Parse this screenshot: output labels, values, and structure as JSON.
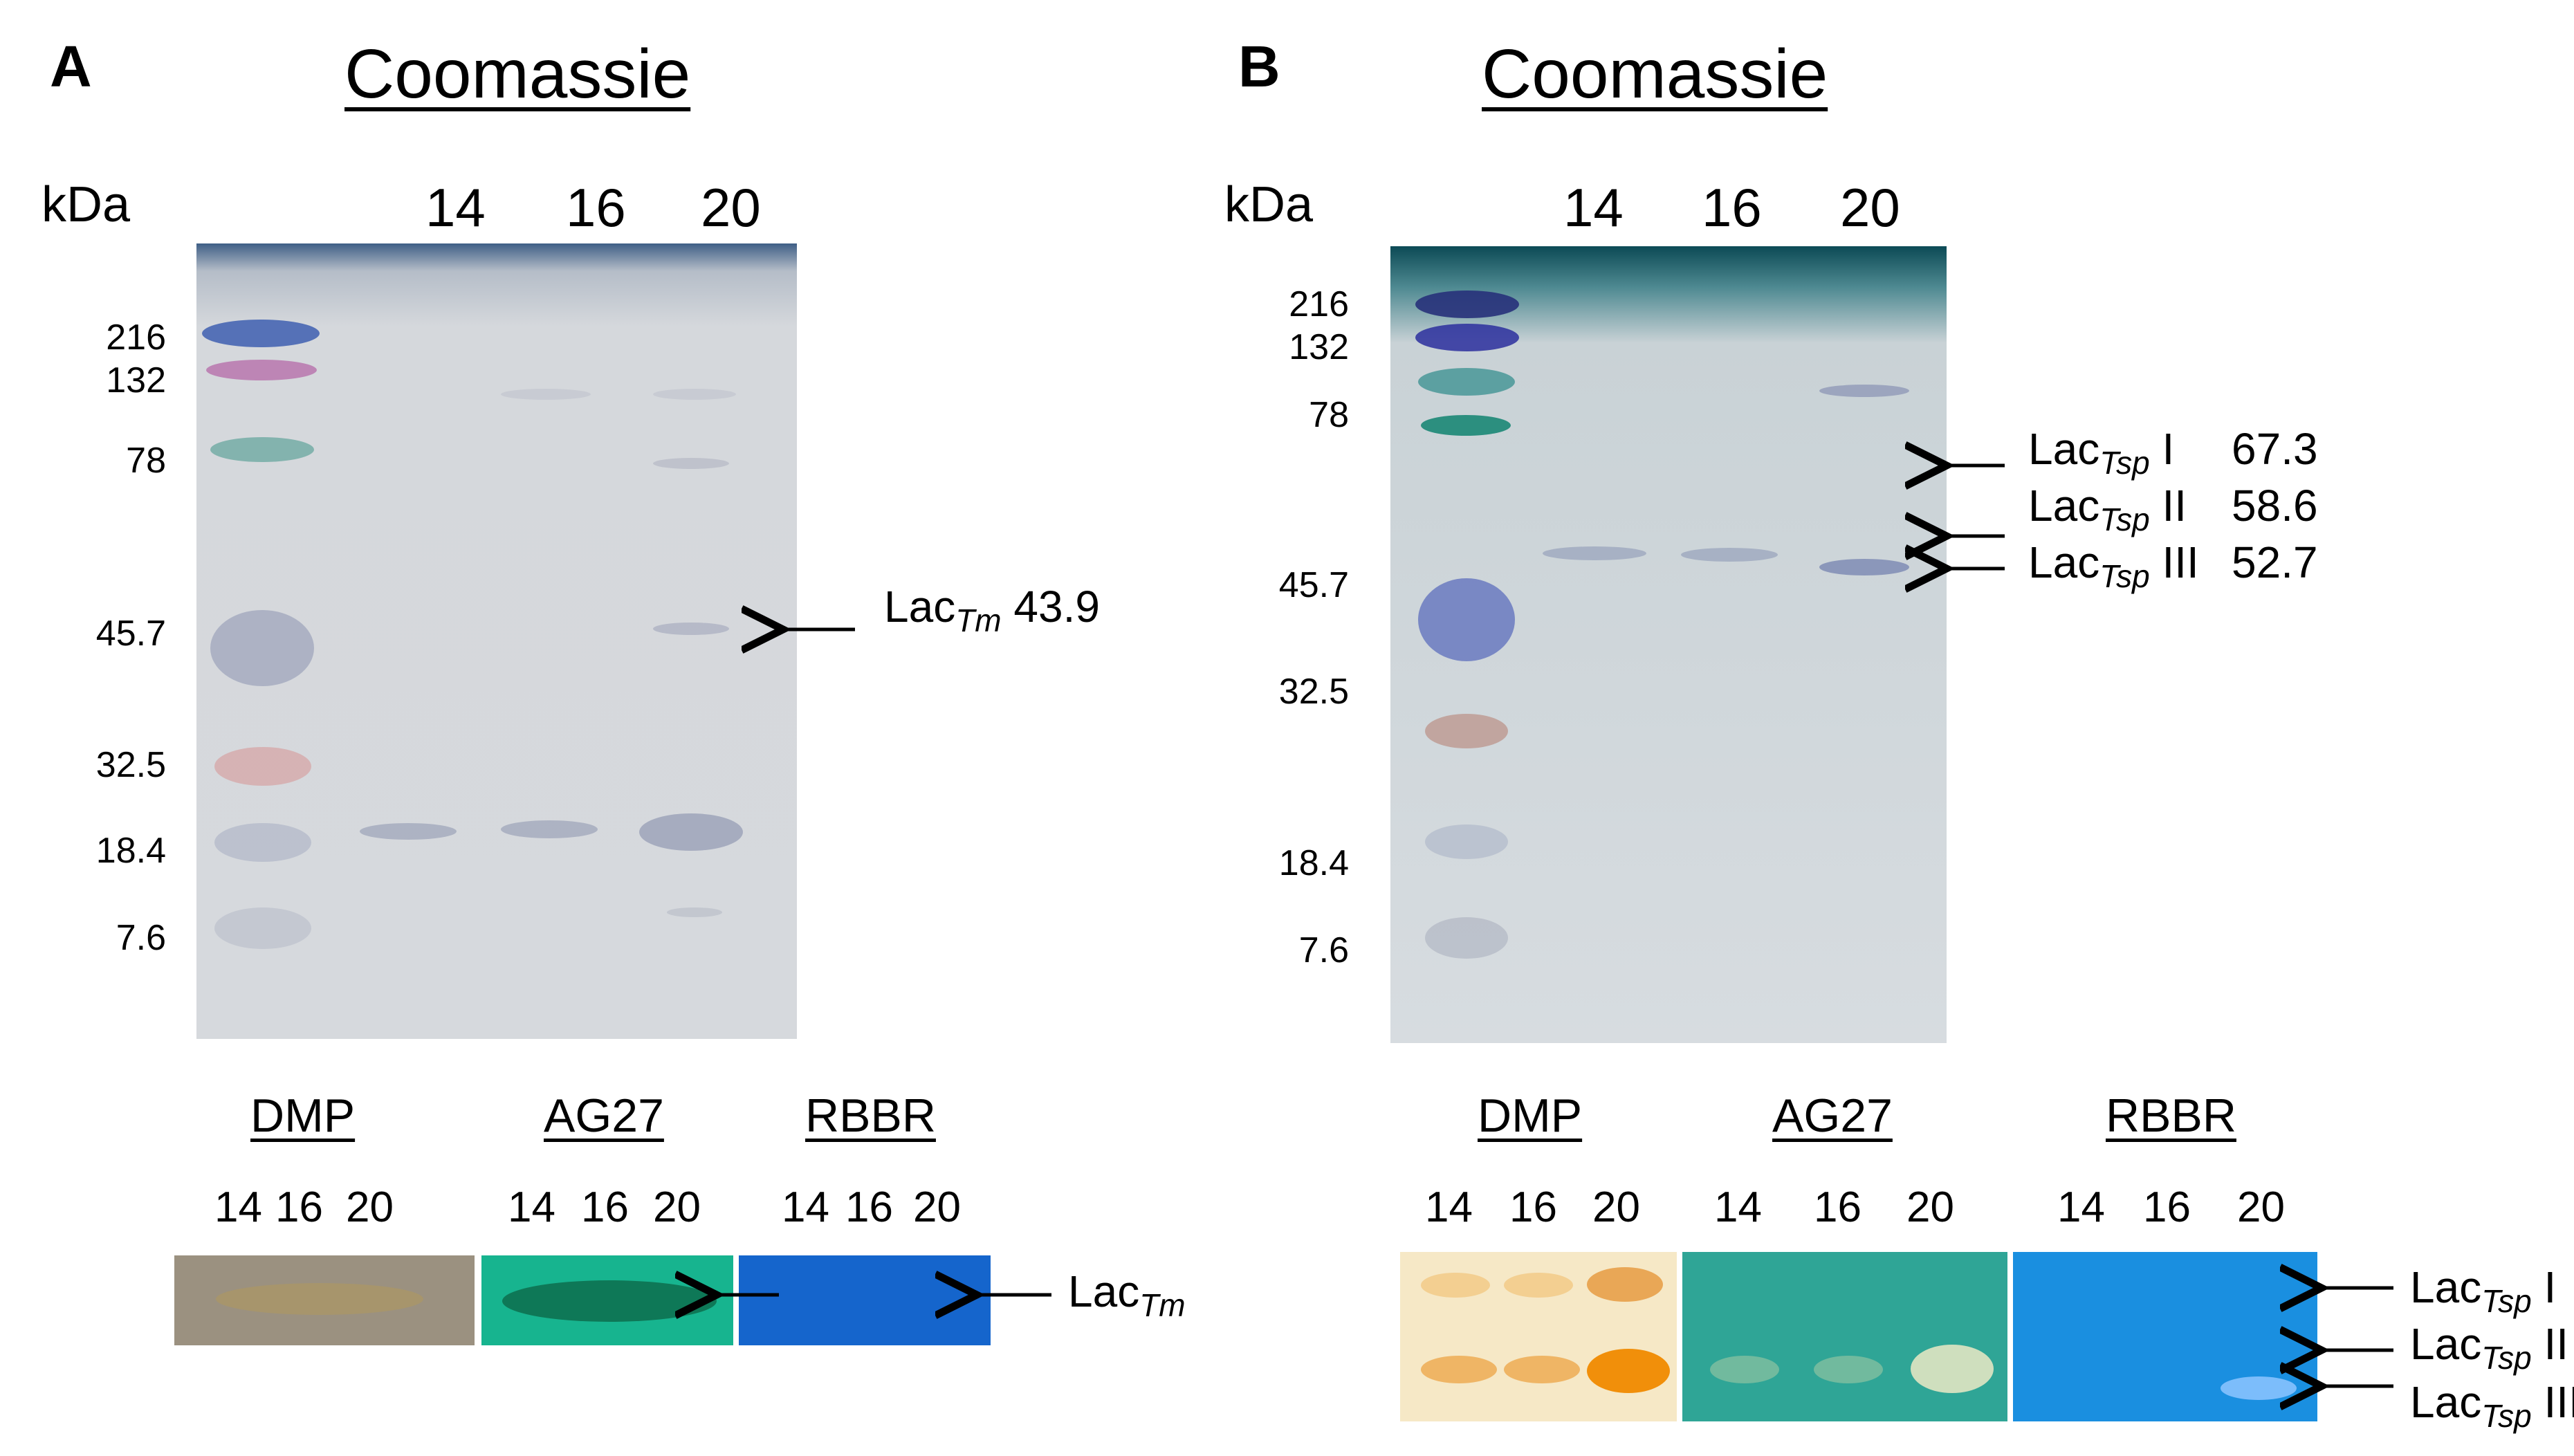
{
  "panel_a": {
    "letter": "A",
    "title": "Coomassie",
    "kda_label": "kDa",
    "lanes": [
      "14",
      "16",
      "20"
    ],
    "markers": [
      "216",
      "132",
      "78",
      "45.7",
      "32.5",
      "18.4",
      "7.6"
    ],
    "annotation": {
      "prefix": "Lac",
      "subscript": "Tm",
      "value": "43.9"
    },
    "zymograms": [
      {
        "name": "DMP",
        "lanes": [
          "14",
          "16",
          "20"
        ],
        "color": "#9b9180"
      },
      {
        "name": "AG27",
        "lanes": [
          "14",
          "16",
          "20"
        ],
        "color": "#17b48f"
      },
      {
        "name": "RBBR",
        "lanes": [
          "14",
          "16",
          "20"
        ],
        "color": "#1565cc"
      }
    ],
    "zymo_annotation": {
      "prefix": "Lac",
      "subscript": "Tm"
    }
  },
  "panel_b": {
    "letter": "B",
    "title": "Coomassie",
    "kda_label": "kDa",
    "lanes": [
      "14",
      "16",
      "20"
    ],
    "markers": [
      "216",
      "132",
      "78",
      "45.7",
      "32.5",
      "18.4",
      "7.6"
    ],
    "annotations": [
      {
        "prefix": "Lac",
        "subscript": "Tsp",
        "roman": "I",
        "value": "67.3"
      },
      {
        "prefix": "Lac",
        "subscript": "Tsp",
        "roman": "II",
        "value": "58.6"
      },
      {
        "prefix": "Lac",
        "subscript": "Tsp",
        "roman": "III",
        "value": "52.7"
      }
    ],
    "zymograms": [
      {
        "name": "DMP",
        "lanes": [
          "14",
          "16",
          "20"
        ],
        "color": "#f6e8c6"
      },
      {
        "name": "AG27",
        "lanes": [
          "14",
          "16",
          "20"
        ],
        "color": "#2fa596"
      },
      {
        "name": "RBBR",
        "lanes": [
          "14",
          "16",
          "20"
        ],
        "color": "#1a8fe0"
      }
    ],
    "zymo_annotations": [
      {
        "prefix": "Lac",
        "subscript": "Tsp",
        "roman": "I"
      },
      {
        "prefix": "Lac",
        "subscript": "Tsp",
        "roman": "II"
      },
      {
        "prefix": "Lac",
        "subscript": "Tsp",
        "roman": "III"
      }
    ]
  }
}
